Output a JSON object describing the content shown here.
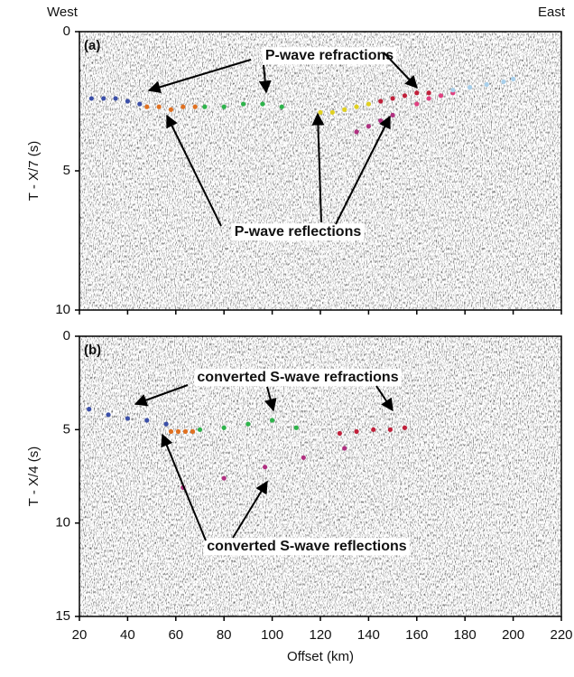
{
  "chart_data": [
    {
      "type": "scatter",
      "panel_label": "(a)",
      "west": "West",
      "east": "East",
      "ylabel": "T - X/7 (s)",
      "annotations": [
        "P-wave refractions",
        "P-wave reflections"
      ],
      "xlim": [
        20,
        220
      ],
      "ylim": [
        0,
        10
      ],
      "yticks": [
        0,
        5,
        10
      ],
      "xticks": [
        20,
        40,
        60,
        80,
        100,
        120,
        140,
        160,
        180,
        200,
        220
      ],
      "y_reversed": true,
      "series": [
        {
          "color": "#3b4fa8",
          "x": [
            25,
            30,
            35,
            40,
            45
          ],
          "values": [
            2.4,
            2.4,
            2.4,
            2.5,
            2.6
          ]
        },
        {
          "color": "#e07020",
          "x": [
            48,
            53,
            58,
            63,
            68
          ],
          "values": [
            2.7,
            2.7,
            2.8,
            2.7,
            2.7
          ]
        },
        {
          "color": "#2db34a",
          "x": [
            72,
            80,
            88,
            96,
            104
          ],
          "values": [
            2.7,
            2.7,
            2.6,
            2.6,
            2.7
          ]
        },
        {
          "color": "#e0d020",
          "x": [
            120,
            125,
            130,
            135,
            140
          ],
          "values": [
            2.9,
            2.9,
            2.8,
            2.7,
            2.6
          ]
        },
        {
          "color": "#c0203a",
          "x": [
            145,
            150,
            155,
            160,
            165
          ],
          "values": [
            2.5,
            2.4,
            2.3,
            2.2,
            2.2
          ]
        },
        {
          "color": "#e04080",
          "x": [
            160,
            165,
            170,
            175
          ],
          "values": [
            2.6,
            2.4,
            2.3,
            2.2
          ]
        },
        {
          "color": "#a8d0ec",
          "x": [
            175,
            182,
            189,
            196,
            200
          ],
          "values": [
            2.1,
            2.0,
            1.9,
            1.8,
            1.7
          ]
        },
        {
          "color": "#b03080",
          "x": [
            135,
            140,
            145,
            150
          ],
          "values": [
            3.6,
            3.4,
            3.2,
            3.0
          ]
        }
      ]
    },
    {
      "type": "scatter",
      "panel_label": "(b)",
      "ylabel": "T - X/4 (s)",
      "xlabel": "Offset (km)",
      "annotations": [
        "converted S-wave refractions",
        "converted S-wave reflections"
      ],
      "xlim": [
        20,
        220
      ],
      "ylim": [
        0,
        15
      ],
      "yticks": [
        0,
        5,
        10,
        15
      ],
      "xticks": [
        20,
        40,
        60,
        80,
        100,
        120,
        140,
        160,
        180,
        200,
        220
      ],
      "y_reversed": true,
      "series": [
        {
          "color": "#3b4fa8",
          "x": [
            24,
            32,
            40,
            48,
            56
          ],
          "values": [
            3.9,
            4.2,
            4.4,
            4.5,
            4.7
          ]
        },
        {
          "color": "#e07020",
          "x": [
            58,
            61,
            64,
            67
          ],
          "values": [
            5.1,
            5.1,
            5.1,
            5.1
          ]
        },
        {
          "color": "#2db34a",
          "x": [
            70,
            80,
            90,
            100,
            110
          ],
          "values": [
            5.0,
            4.9,
            4.7,
            4.5,
            4.9
          ]
        },
        {
          "color": "#c0203a",
          "x": [
            128,
            135,
            142,
            149,
            155
          ],
          "values": [
            5.2,
            5.1,
            5.0,
            5.0,
            4.9
          ]
        },
        {
          "color": "#b03080",
          "x": [
            63,
            80,
            97,
            113,
            130
          ],
          "values": [
            8.1,
            7.6,
            7.0,
            6.5,
            6.0
          ]
        }
      ]
    }
  ]
}
